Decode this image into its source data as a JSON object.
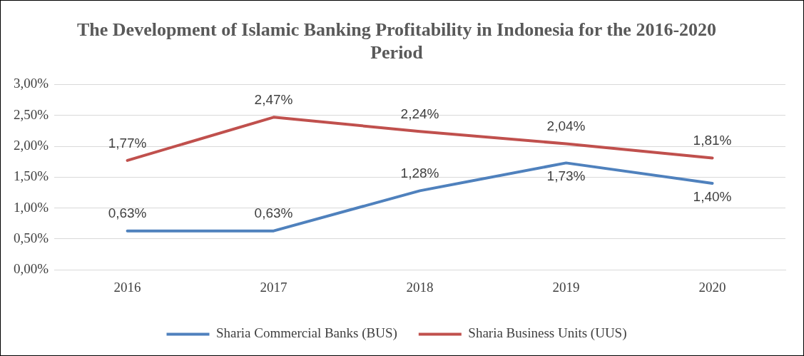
{
  "chart_data": {
    "type": "line",
    "title": "The Development of Islamic Banking Profitability in Indonesia for the 2016-2020 Period",
    "categories": [
      "2016",
      "2017",
      "2018",
      "2019",
      "2020"
    ],
    "series": [
      {
        "name": "Sharia Commercial Banks (BUS)",
        "color": "#4f81bd",
        "values": [
          0.63,
          0.63,
          1.28,
          1.73,
          1.4
        ],
        "value_labels": [
          "0,63%",
          "0,63%",
          "1,28%",
          "1,73%",
          "1,40%"
        ]
      },
      {
        "name": "Sharia Business Units (UUS)",
        "color": "#c0504d",
        "values": [
          1.77,
          2.47,
          2.24,
          2.04,
          1.81
        ],
        "value_labels": [
          "1,77%",
          "2,47%",
          "2,24%",
          "2,04%",
          "1,81%"
        ]
      }
    ],
    "ylim": [
      0,
      3
    ],
    "yticks": [
      {
        "value": 0,
        "label": "0,00%"
      },
      {
        "value": 0.5,
        "label": "0,50%"
      },
      {
        "value": 1,
        "label": "1,00%"
      },
      {
        "value": 1.5,
        "label": "1,50%"
      },
      {
        "value": 2,
        "label": "2,00%"
      },
      {
        "value": 2.5,
        "label": "2,50%"
      },
      {
        "value": 3,
        "label": "3,00%"
      }
    ],
    "grid": "y",
    "legend": "bottom",
    "marker": "none",
    "line_style": "solid"
  }
}
